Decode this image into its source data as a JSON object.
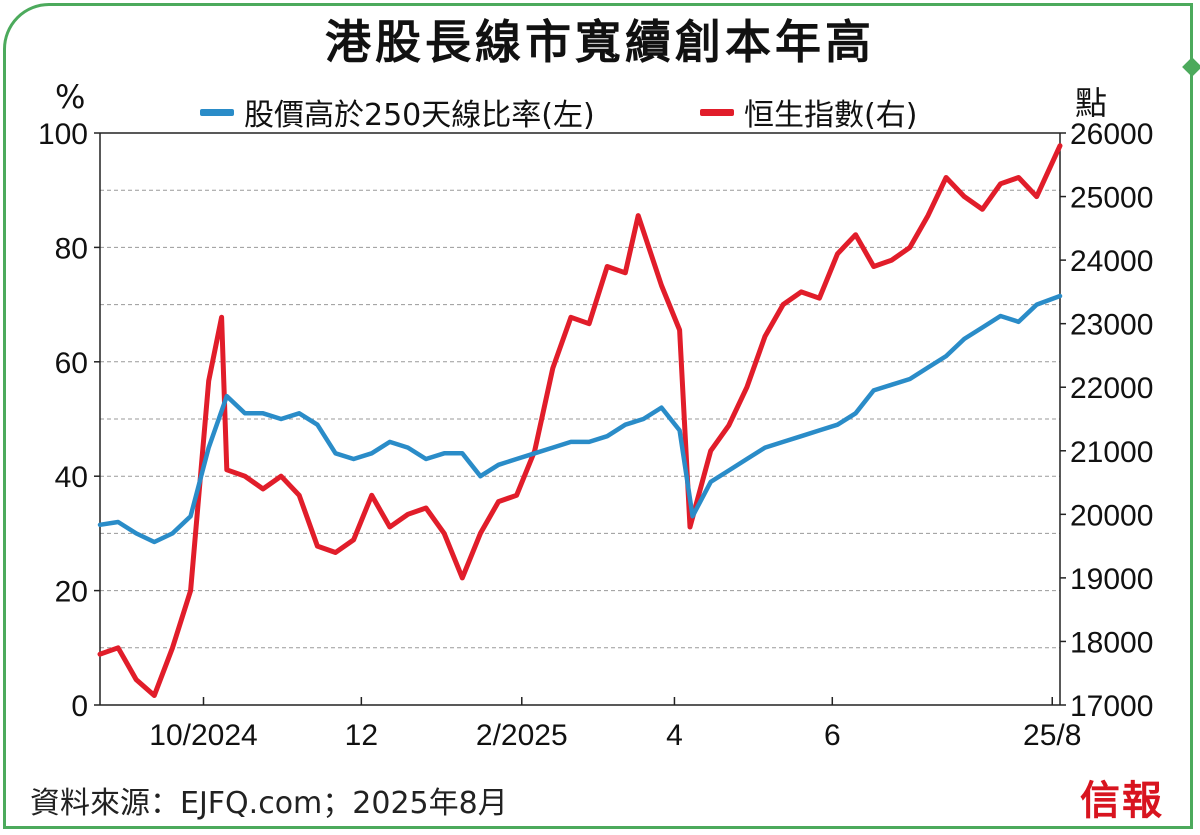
{
  "title": "港股長線市寬續創本年高",
  "source": "資料來源：EJFQ.com；2025年8月",
  "logo": "信報",
  "chart_data": {
    "type": "line",
    "title": "港股長線市寬續創本年高",
    "y_left_label": "%",
    "y_right_label": "點",
    "y_left_lim": [
      0,
      100
    ],
    "y_right_lim": [
      17000,
      26000
    ],
    "y_left_ticks": [
      "0",
      "20",
      "40",
      "60",
      "80",
      "100"
    ],
    "y_right_ticks": [
      "17000",
      "18000",
      "19000",
      "20000",
      "21000",
      "22000",
      "23000",
      "24000",
      "25000",
      "26000"
    ],
    "x_tick_labels": [
      "10/2024",
      "12",
      "2/2025",
      "4",
      "6",
      "25/8"
    ],
    "x_range": [
      "2024-08-22",
      "2025-08-28"
    ],
    "x_tick_dates": [
      "2024-10-01",
      "2024-12-01",
      "2025-02-01",
      "2025-04-01",
      "2025-06-01",
      "2025-08-25"
    ],
    "grid": "horizontal-dashed",
    "legend_position": "top",
    "series": [
      {
        "name": "股價高於250天線比率(左)",
        "axis": "left",
        "color": "#2a8cc8",
        "x": [
          "2024-08-22",
          "2024-08-29",
          "2024-09-05",
          "2024-09-12",
          "2024-09-19",
          "2024-09-26",
          "2024-10-03",
          "2024-10-10",
          "2024-10-17",
          "2024-10-24",
          "2024-10-31",
          "2024-11-07",
          "2024-11-14",
          "2024-11-21",
          "2024-11-28",
          "2024-12-05",
          "2024-12-12",
          "2024-12-19",
          "2024-12-26",
          "2025-01-02",
          "2025-01-09",
          "2025-01-16",
          "2025-01-23",
          "2025-01-30",
          "2025-02-06",
          "2025-02-13",
          "2025-02-20",
          "2025-02-27",
          "2025-03-06",
          "2025-03-13",
          "2025-03-20",
          "2025-03-27",
          "2025-04-03",
          "2025-04-08",
          "2025-04-15",
          "2025-04-22",
          "2025-04-29",
          "2025-05-06",
          "2025-05-13",
          "2025-05-20",
          "2025-05-27",
          "2025-06-03",
          "2025-06-10",
          "2025-06-17",
          "2025-06-24",
          "2025-07-01",
          "2025-07-08",
          "2025-07-15",
          "2025-07-22",
          "2025-07-29",
          "2025-08-05",
          "2025-08-12",
          "2025-08-19",
          "2025-08-28"
        ],
        "values": [
          31.5,
          32,
          30,
          28.5,
          30,
          33,
          45,
          54,
          51,
          51,
          50,
          51,
          49,
          44,
          43,
          44,
          46,
          45,
          43,
          44,
          44,
          40,
          42,
          43,
          44,
          45,
          46,
          46,
          47,
          49,
          50,
          52,
          48,
          33,
          39,
          41,
          43,
          45,
          46,
          47,
          48,
          49,
          51,
          55,
          56,
          57,
          59,
          61,
          64,
          66,
          68,
          67,
          70,
          71.5
        ]
      },
      {
        "name": "恒生指數(右)",
        "axis": "right",
        "color": "#e11d2a",
        "x": [
          "2024-08-22",
          "2024-08-29",
          "2024-09-05",
          "2024-09-12",
          "2024-09-19",
          "2024-09-26",
          "2024-10-03",
          "2024-10-08",
          "2024-10-10",
          "2024-10-17",
          "2024-10-24",
          "2024-10-31",
          "2024-11-07",
          "2024-11-14",
          "2024-11-21",
          "2024-11-28",
          "2024-12-05",
          "2024-12-12",
          "2024-12-19",
          "2024-12-26",
          "2025-01-02",
          "2025-01-09",
          "2025-01-16",
          "2025-01-23",
          "2025-01-30",
          "2025-02-06",
          "2025-02-13",
          "2025-02-20",
          "2025-02-27",
          "2025-03-06",
          "2025-03-13",
          "2025-03-18",
          "2025-03-27",
          "2025-04-03",
          "2025-04-07",
          "2025-04-15",
          "2025-04-22",
          "2025-04-29",
          "2025-05-06",
          "2025-05-13",
          "2025-05-20",
          "2025-05-27",
          "2025-06-03",
          "2025-06-10",
          "2025-06-17",
          "2025-06-24",
          "2025-07-01",
          "2025-07-08",
          "2025-07-15",
          "2025-07-22",
          "2025-07-29",
          "2025-08-05",
          "2025-08-12",
          "2025-08-19",
          "2025-08-28"
        ],
        "values": [
          17800,
          17900,
          17400,
          17150,
          17900,
          18800,
          22100,
          23100,
          20700,
          20600,
          20400,
          20600,
          20300,
          19500,
          19400,
          19600,
          20300,
          19800,
          20000,
          20100,
          19700,
          19000,
          19700,
          20200,
          20300,
          21000,
          22300,
          23100,
          23000,
          23900,
          23800,
          24700,
          23600,
          22900,
          19800,
          21000,
          21400,
          22000,
          22800,
          23300,
          23500,
          23400,
          24100,
          24400,
          23900,
          24000,
          24200,
          24700,
          25300,
          25000,
          24800,
          25200,
          25300,
          25000,
          25800
        ]
      }
    ]
  }
}
